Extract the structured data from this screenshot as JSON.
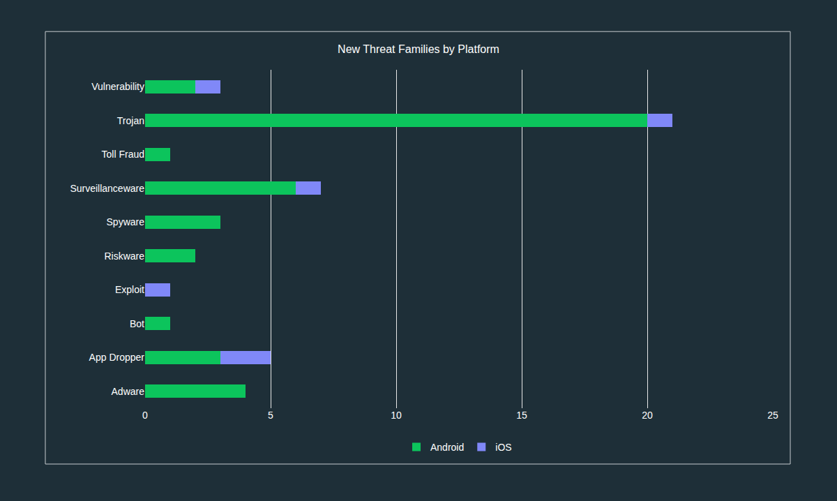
{
  "chart_data": {
    "type": "bar",
    "title": "New Threat Families by Platform",
    "orientation": "horizontal",
    "stacked": true,
    "categories": [
      "Vulnerability",
      "Trojan",
      "Toll Fraud",
      "Surveillanceware",
      "Spyware",
      "Riskware",
      "Exploit",
      "Bot",
      "App Dropper",
      "Adware"
    ],
    "series": [
      {
        "name": "Android",
        "color": "#0cc45c",
        "values": [
          2,
          20,
          1,
          6,
          3,
          2,
          0,
          1,
          3,
          4
        ]
      },
      {
        "name": "iOS",
        "color": "#8088f8",
        "values": [
          1,
          1,
          0,
          1,
          0,
          0,
          1,
          0,
          2,
          0
        ]
      }
    ],
    "xlim": [
      0,
      25
    ],
    "xticks": [
      0,
      5,
      10,
      15,
      20,
      25
    ],
    "grid": true,
    "legend": "bottom"
  }
}
